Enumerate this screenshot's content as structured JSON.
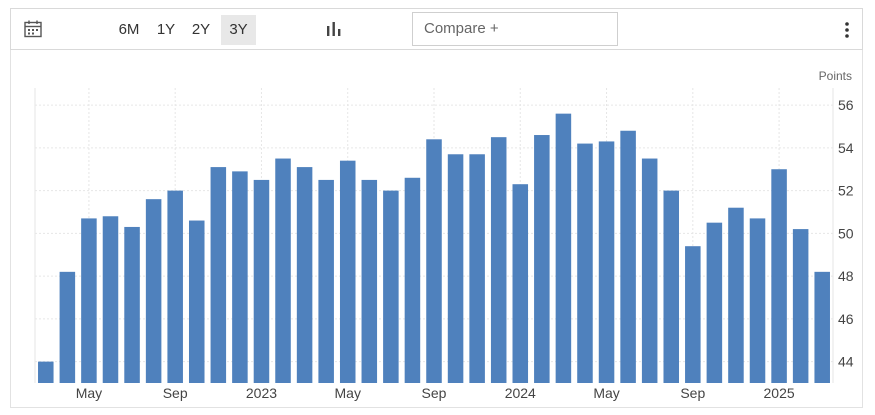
{
  "toolbar": {
    "calendar_icon": "calendar-icon",
    "ranges": [
      "6M",
      "1Y",
      "2Y",
      "3Y"
    ],
    "active_range": "3Y",
    "chart_type_icon": "bar-chart-icon",
    "compare_placeholder": "Compare +",
    "menu_icon": "vertical-dots-icon"
  },
  "colors": {
    "bar": "#4f81bd",
    "grid": "#e6e6e6",
    "axis_text": "#444444"
  },
  "chart_data": {
    "type": "bar",
    "ylabel": "Points",
    "ylim": [
      43,
      56.8
    ],
    "yticks": [
      44,
      46,
      48,
      50,
      52,
      54,
      56
    ],
    "ytick_labels": [
      "44",
      "46",
      "48",
      "50",
      "52",
      "54",
      "56"
    ],
    "xtick_labels": [
      {
        "index": 2,
        "label": "May"
      },
      {
        "index": 6,
        "label": "Sep"
      },
      {
        "index": 10,
        "label": "2023"
      },
      {
        "index": 14,
        "label": "May"
      },
      {
        "index": 18,
        "label": "Sep"
      },
      {
        "index": 22,
        "label": "2024"
      },
      {
        "index": 26,
        "label": "May"
      },
      {
        "index": 30,
        "label": "Sep"
      },
      {
        "index": 34,
        "label": "2025"
      }
    ],
    "grid": true,
    "values": [
      44.0,
      48.2,
      50.7,
      50.8,
      50.3,
      51.6,
      52.0,
      50.6,
      53.1,
      52.9,
      52.5,
      53.5,
      53.1,
      52.5,
      53.4,
      52.5,
      52.0,
      52.6,
      54.4,
      53.7,
      53.7,
      54.5,
      52.3,
      54.6,
      55.6,
      54.2,
      54.3,
      54.8,
      53.5,
      52.0,
      49.4,
      50.5,
      51.2,
      50.7,
      53.0,
      50.2,
      48.2
    ]
  }
}
